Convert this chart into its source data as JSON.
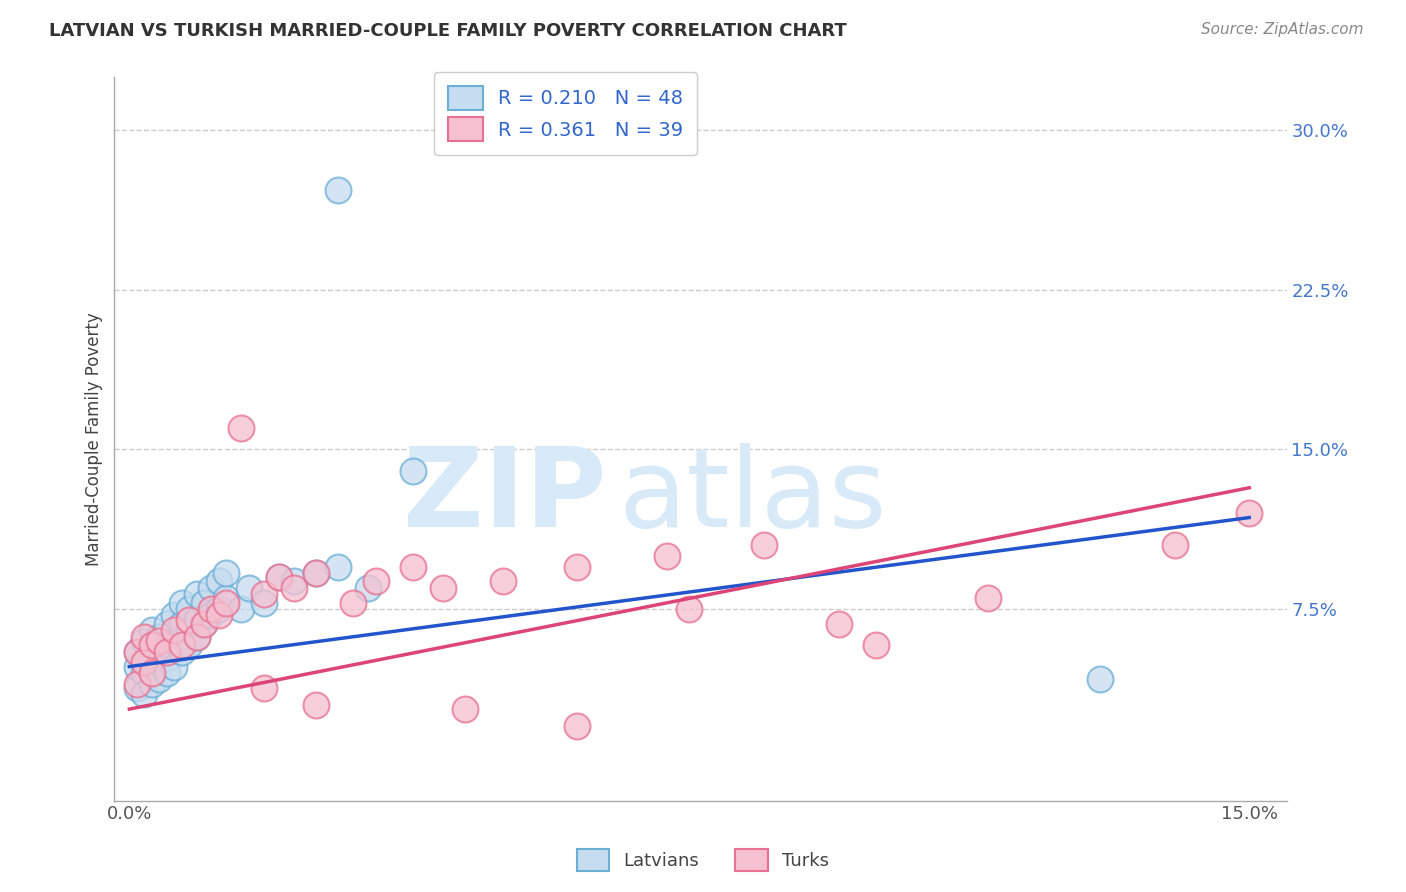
{
  "title": "LATVIAN VS TURKISH MARRIED-COUPLE FAMILY POVERTY CORRELATION CHART",
  "source_text": "Source: ZipAtlas.com",
  "ylabel": "Married-Couple Family Poverty",
  "xlim": [
    -0.002,
    0.155
  ],
  "ylim": [
    -0.015,
    0.325
  ],
  "xticks": [
    0.0,
    0.15
  ],
  "xticklabels": [
    "0.0%",
    "15.0%"
  ],
  "yticks_right": [
    0.075,
    0.15,
    0.225,
    0.3
  ],
  "yticks_right_labels": [
    "7.5%",
    "15.0%",
    "22.5%",
    "30.0%"
  ],
  "latvian_edge_color": "#6baed6",
  "latvian_face_color": "#c6dcf0",
  "turkish_edge_color": "#e87090",
  "turkish_face_color": "#f5c0d0",
  "latvian_R": 0.21,
  "latvian_N": 48,
  "turkish_R": 0.361,
  "turkish_N": 39,
  "latvian_scatter_x": [
    0.001,
    0.001,
    0.001,
    0.002,
    0.002,
    0.002,
    0.003,
    0.003,
    0.003,
    0.003,
    0.004,
    0.004,
    0.004,
    0.005,
    0.005,
    0.005,
    0.005,
    0.006,
    0.006,
    0.006,
    0.007,
    0.007,
    0.007,
    0.008,
    0.008,
    0.008,
    0.009,
    0.009,
    0.009,
    0.01,
    0.01,
    0.011,
    0.011,
    0.012,
    0.012,
    0.013,
    0.013,
    0.015,
    0.016,
    0.018,
    0.02,
    0.022,
    0.025,
    0.028,
    0.032,
    0.038,
    0.028,
    0.13
  ],
  "latvian_scatter_y": [
    0.048,
    0.038,
    0.055,
    0.06,
    0.045,
    0.035,
    0.065,
    0.05,
    0.04,
    0.058,
    0.055,
    0.062,
    0.042,
    0.052,
    0.068,
    0.045,
    0.058,
    0.06,
    0.048,
    0.072,
    0.055,
    0.068,
    0.078,
    0.065,
    0.075,
    0.058,
    0.07,
    0.062,
    0.082,
    0.068,
    0.078,
    0.072,
    0.085,
    0.075,
    0.088,
    0.08,
    0.092,
    0.075,
    0.085,
    0.078,
    0.09,
    0.088,
    0.092,
    0.095,
    0.085,
    0.14,
    0.272,
    0.042
  ],
  "turkish_scatter_x": [
    0.001,
    0.001,
    0.002,
    0.002,
    0.003,
    0.003,
    0.004,
    0.005,
    0.006,
    0.007,
    0.008,
    0.009,
    0.01,
    0.011,
    0.012,
    0.013,
    0.015,
    0.018,
    0.02,
    0.022,
    0.025,
    0.03,
    0.033,
    0.038,
    0.042,
    0.05,
    0.06,
    0.072,
    0.085,
    0.1,
    0.018,
    0.025,
    0.045,
    0.06,
    0.075,
    0.095,
    0.115,
    0.14,
    0.15
  ],
  "turkish_scatter_y": [
    0.04,
    0.055,
    0.05,
    0.062,
    0.058,
    0.045,
    0.06,
    0.055,
    0.065,
    0.058,
    0.07,
    0.062,
    0.068,
    0.075,
    0.072,
    0.078,
    0.16,
    0.082,
    0.09,
    0.085,
    0.092,
    0.078,
    0.088,
    0.095,
    0.085,
    0.088,
    0.095,
    0.1,
    0.105,
    0.058,
    0.038,
    0.03,
    0.028,
    0.02,
    0.075,
    0.068,
    0.08,
    0.105,
    0.12
  ],
  "watermark_zip": "ZIP",
  "watermark_atlas": "atlas",
  "watermark_color": "#d8eaf8",
  "background_color": "#ffffff",
  "grid_color": "#cccccc",
  "line_blue": "#2255cc",
  "line_pink": "#dd4477",
  "legend_label_color": "#3366cc"
}
